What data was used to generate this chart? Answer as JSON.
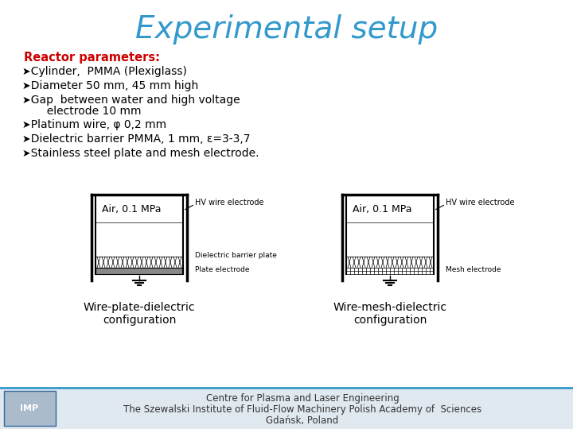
{
  "title": "Experimental setup",
  "title_color": "#3399CC",
  "title_fontsize": 28,
  "bg_color": "#FFFFFF",
  "header_label": "Reactor parameters:",
  "header_color": "#CC0000",
  "bullet_items": [
    "Cylinder,  PMMA (Plexiglass)",
    "Diameter 50 mm, 45 mm high",
    "Gap  between water and high voltage\n  electrode 10 mm",
    "Platinum wire, φ 0,2 mm",
    "Dielectric barrier PMMA, 1 mm, ε=3-3,7",
    "Stainless steel plate and mesh electrode."
  ],
  "config1_label": "Wire-plate-dielectric\nconfiguration",
  "config2_label": "Wire-mesh-dielectric\nconfiguration",
  "air_label": "Air, 0.1 MPa",
  "hv_label": "HV wire electrode",
  "dielectric_label": "Dielectric barrier plate",
  "plate_label": "Plate electrode",
  "mesh_label": "Mesh electrode",
  "footer_line1": "Centre for Plasma and Laser Engineering",
  "footer_line2": "The Szewalski Institute of Fluid-Flow Machinery Polish Academy of  Sciences",
  "footer_line3": "Gdańsk, Poland",
  "footer_color": "#333333",
  "footer_bg": "#E0E8F0",
  "separator_color": "#3399CC",
  "text_color": "#000000",
  "diagram_color": "#000000",
  "water_color": "#CCDDEE"
}
